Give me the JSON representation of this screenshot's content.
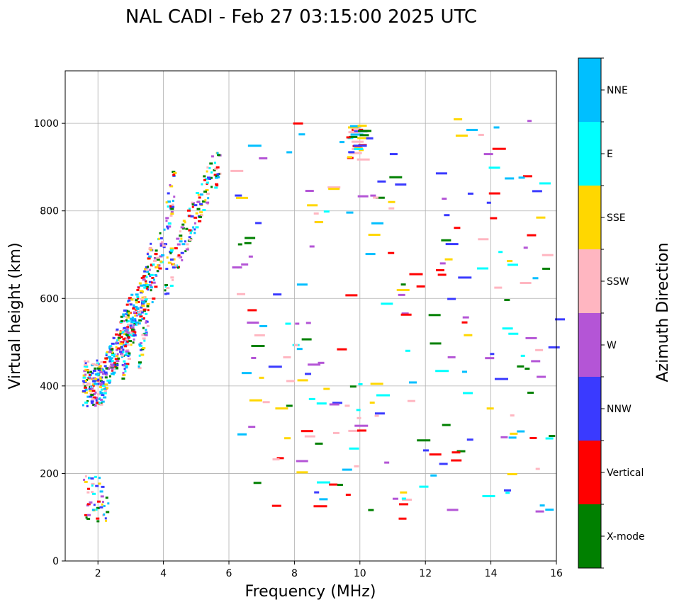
{
  "chart_data": {
    "type": "scatter",
    "title": "NAL CADI - Feb 27 03:15:00 2025 UTC",
    "xlabel": "Frequency (MHz)",
    "ylabel": "Virtual height (km)",
    "xlim": [
      1,
      16
    ],
    "ylim": [
      0,
      1120
    ],
    "xticks": [
      2,
      4,
      6,
      8,
      10,
      12,
      14,
      16
    ],
    "yticks": [
      0,
      200,
      400,
      600,
      800,
      1000
    ],
    "grid": true,
    "colorbar": {
      "label": "Azimuth Direction",
      "categories": [
        {
          "name": "X-mode",
          "color": "#008000"
        },
        {
          "name": "Vertical",
          "color": "#ff0000"
        },
        {
          "name": "NNW",
          "color": "#3a3aff"
        },
        {
          "name": "W",
          "color": "#b455d6"
        },
        {
          "name": "SSW",
          "color": "#ffb6c1"
        },
        {
          "name": "SSE",
          "color": "#ffd700"
        },
        {
          "name": "E",
          "color": "#00ffff"
        },
        {
          "name": "NNE",
          "color": "#00bfff"
        }
      ]
    },
    "echo_regions": [
      {
        "f0": 1.5,
        "f1": 2.1,
        "h0": 350,
        "h1": 460,
        "count": 110
      },
      {
        "f0": 2.0,
        "f1": 3.0,
        "h0": 390,
        "h1": 570,
        "count": 190
      },
      {
        "f0": 2.7,
        "f1": 3.6,
        "h0": 450,
        "h1": 690,
        "count": 170
      },
      {
        "f0": 3.2,
        "f1": 4.3,
        "h0": 470,
        "h1": 870,
        "count": 110
      },
      {
        "f0": 4.0,
        "f1": 5.7,
        "h0": 640,
        "h1": 920,
        "count": 140
      },
      {
        "f0": 1.5,
        "f1": 2.3,
        "h0": 90,
        "h1": 195,
        "count": 45
      },
      {
        "f0": 9.6,
        "f1": 10.0,
        "h0": 910,
        "h1": 1010,
        "count": 30
      },
      {
        "f0": 6.0,
        "f1": 16.0,
        "h0": 90,
        "h1": 1020,
        "count": 230
      }
    ]
  }
}
